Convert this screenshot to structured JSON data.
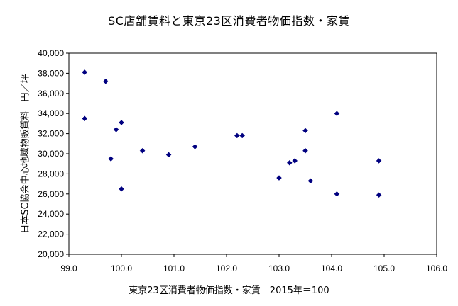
{
  "chart_data": {
    "type": "scatter",
    "title": "SC店舗賃料と東京23区消費者物価指数・家賃",
    "xlabel": "東京23区消費者物価指数・家賃　2015年＝100",
    "ylabel": "日本SC協会中心地域物販賃料　円／坪",
    "xlim": [
      99.0,
      106.0
    ],
    "ylim": [
      20000,
      40000
    ],
    "x_ticks": [
      "99.0",
      "100.0",
      "101.0",
      "102.0",
      "103.0",
      "104.0",
      "105.0",
      "106.0"
    ],
    "y_ticks": [
      "20,000",
      "22,000",
      "24,000",
      "26,000",
      "28,000",
      "30,000",
      "32,000",
      "34,000",
      "36,000",
      "38,000",
      "40,000"
    ],
    "grid": false,
    "marker_color": "#000080",
    "points": [
      {
        "x": 99.3,
        "y": 38100
      },
      {
        "x": 99.3,
        "y": 33500
      },
      {
        "x": 99.7,
        "y": 37200
      },
      {
        "x": 99.8,
        "y": 29500
      },
      {
        "x": 99.9,
        "y": 32400
      },
      {
        "x": 100.0,
        "y": 33100
      },
      {
        "x": 100.0,
        "y": 26500
      },
      {
        "x": 100.4,
        "y": 30300
      },
      {
        "x": 100.9,
        "y": 29900
      },
      {
        "x": 101.4,
        "y": 30700
      },
      {
        "x": 102.2,
        "y": 31800
      },
      {
        "x": 102.3,
        "y": 31800
      },
      {
        "x": 103.0,
        "y": 27600
      },
      {
        "x": 103.2,
        "y": 29100
      },
      {
        "x": 103.3,
        "y": 29300
      },
      {
        "x": 103.5,
        "y": 32300
      },
      {
        "x": 103.5,
        "y": 30300
      },
      {
        "x": 103.6,
        "y": 27300
      },
      {
        "x": 104.1,
        "y": 34000
      },
      {
        "x": 104.1,
        "y": 26000
      },
      {
        "x": 104.9,
        "y": 29300
      },
      {
        "x": 104.9,
        "y": 25900
      }
    ]
  }
}
